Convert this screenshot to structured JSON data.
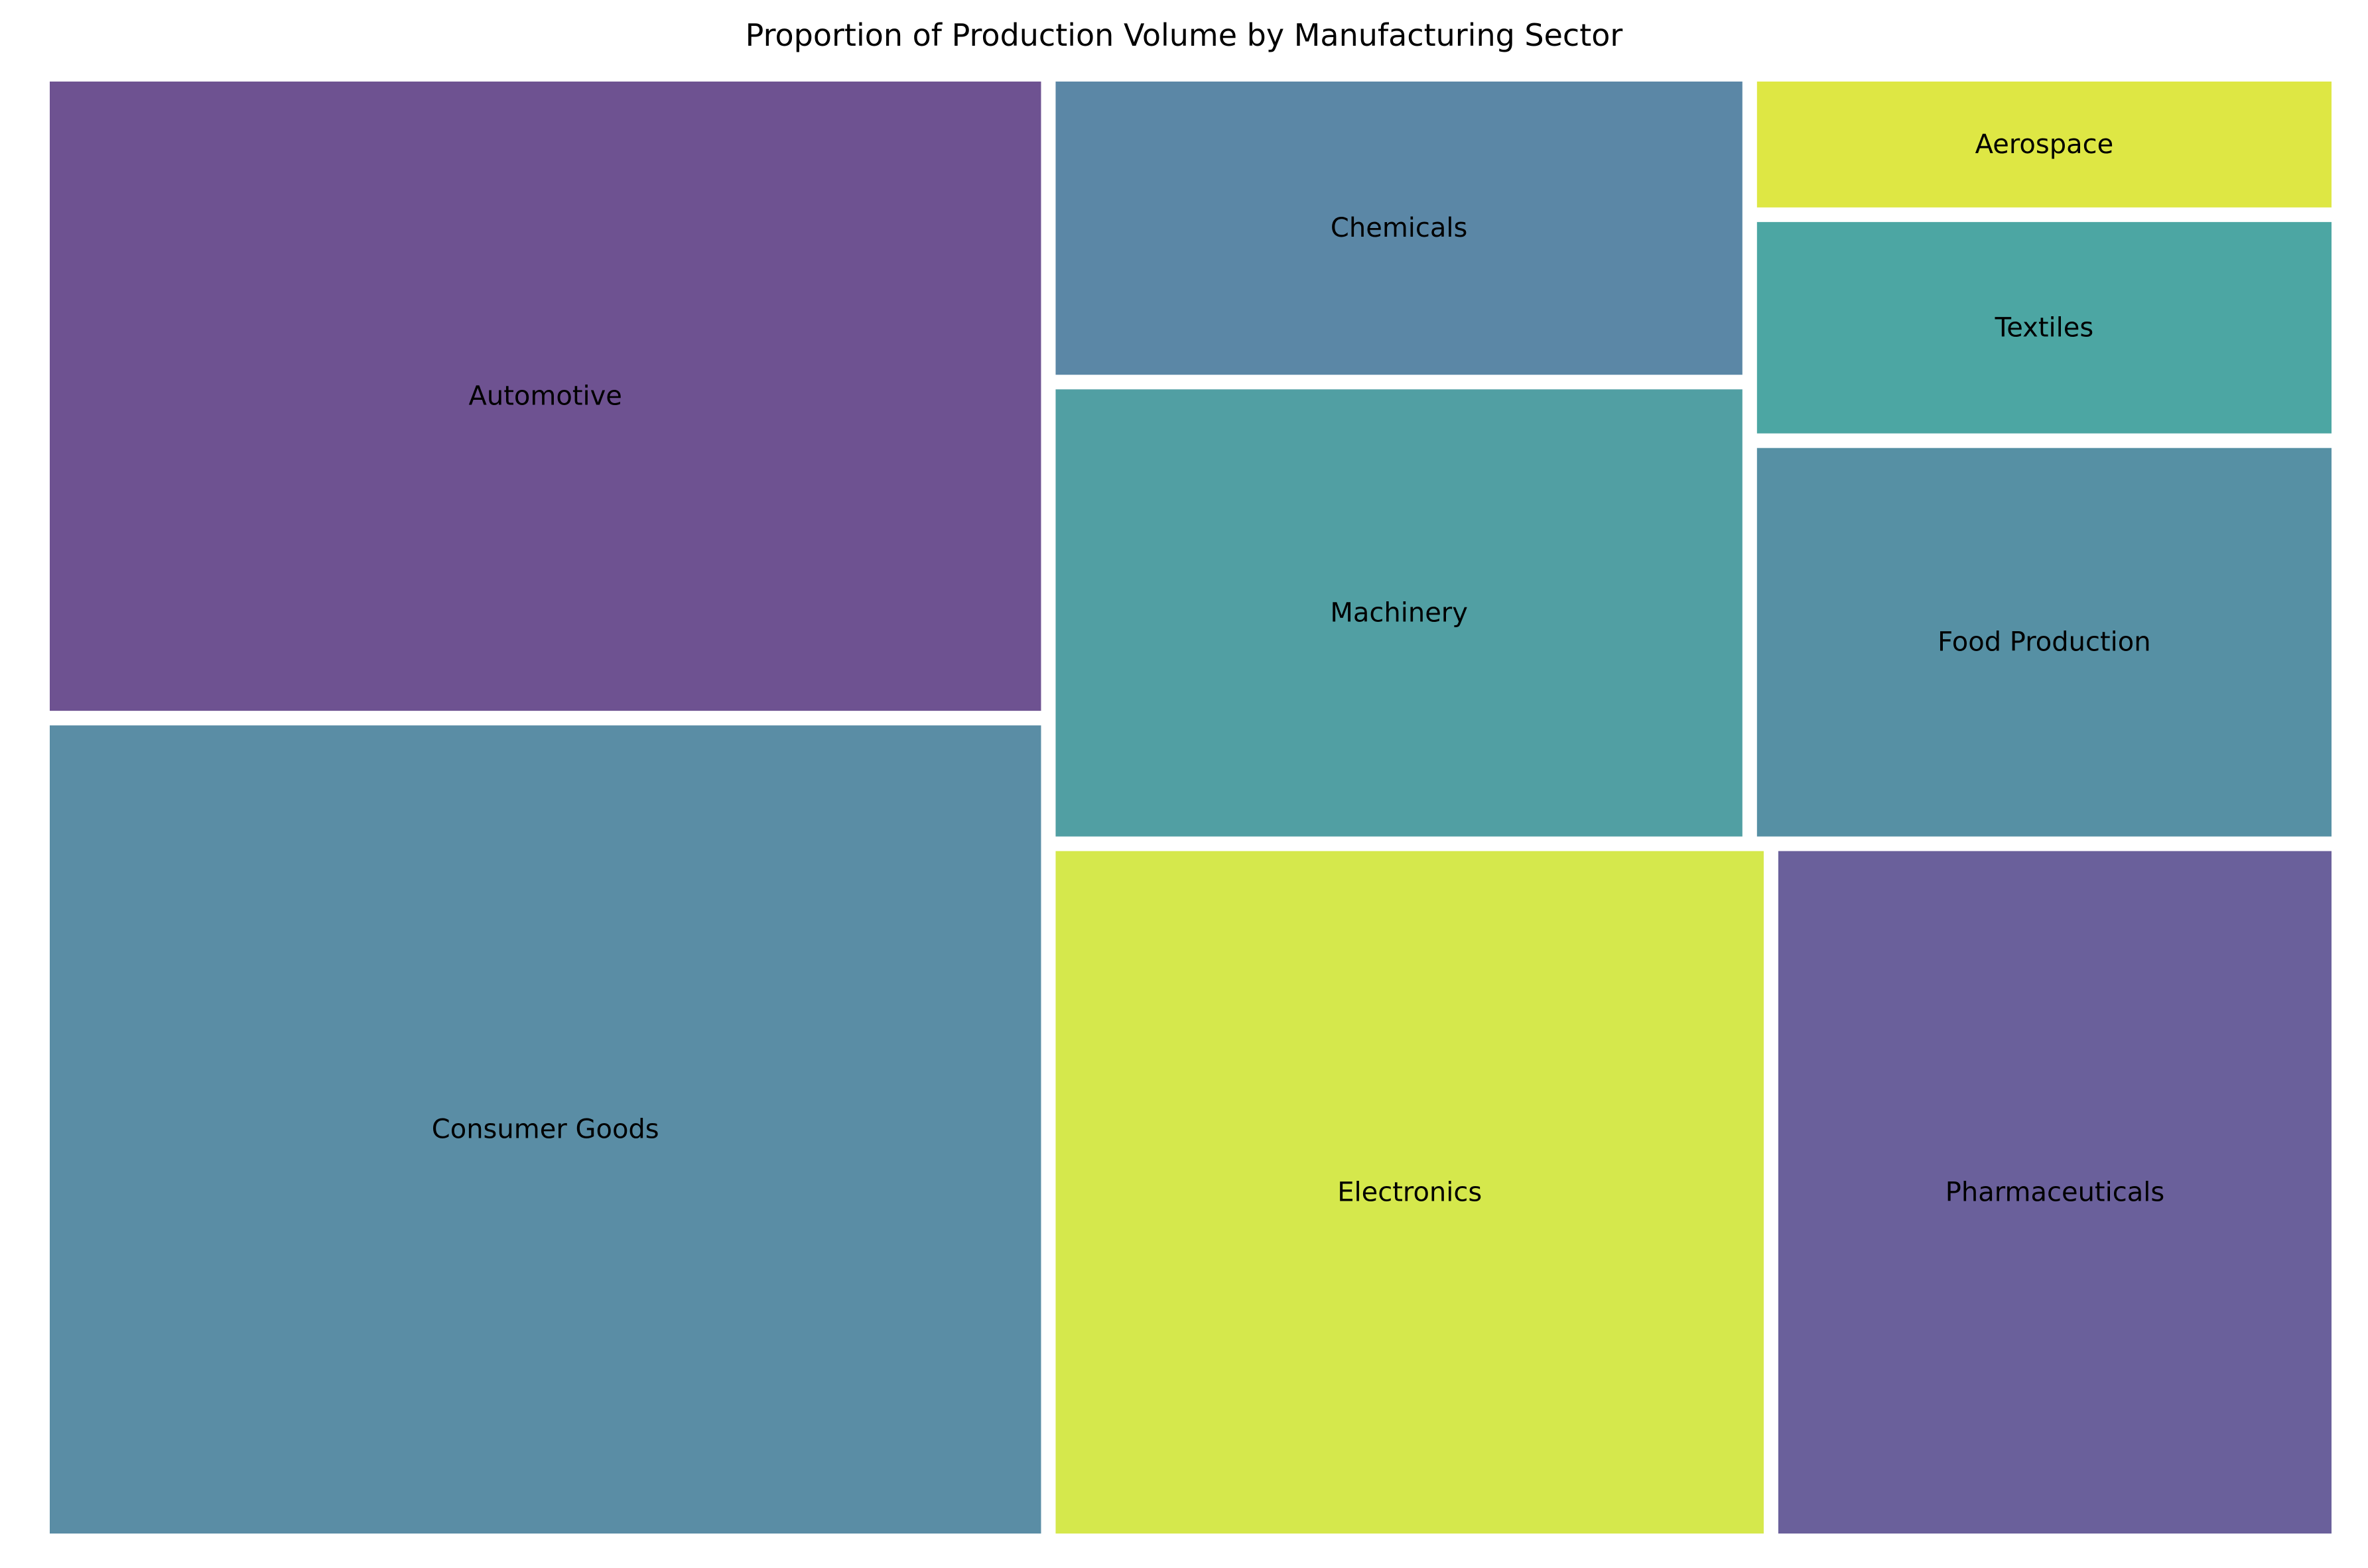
{
  "chart_data": {
    "type": "treemap",
    "title": "Proportion of Production Volume by Manufacturing Sector",
    "unit": "%",
    "items": [
      {
        "name": "Automotive",
        "value": 18,
        "color": "#6e5291"
      },
      {
        "name": "Consumer Goods",
        "value": 23,
        "color": "#5a8da5"
      },
      {
        "name": "Chemicals",
        "value": 6,
        "color": "#5b87a6"
      },
      {
        "name": "Machinery",
        "value": 9,
        "color": "#519fa3"
      },
      {
        "name": "Electronics",
        "value": 14,
        "color": "#d5e84c"
      },
      {
        "name": "Pharmaceuticals",
        "value": 11,
        "color": "#6a609b"
      },
      {
        "name": "Aerospace",
        "value": 2.3,
        "color": "#dee744"
      },
      {
        "name": "Textiles",
        "value": 3.7,
        "color": "#4ca6a3"
      },
      {
        "name": "Food Production",
        "value": 6.6,
        "color": "#5690a4"
      }
    ]
  }
}
